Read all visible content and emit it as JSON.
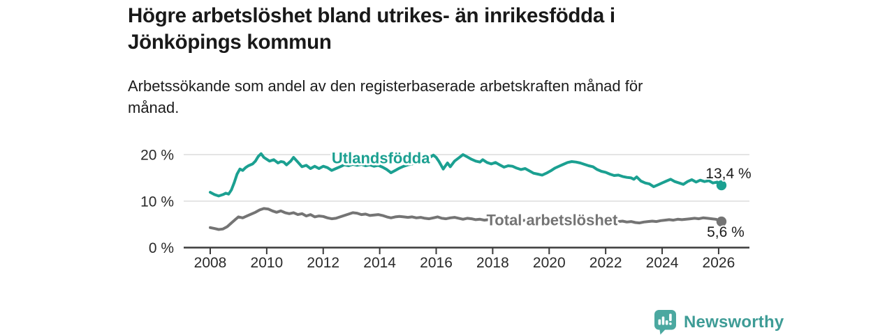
{
  "header": {
    "title": "Högre arbetslöshet bland utrikes- än inrikesfödda i\nJönköpings kommun",
    "subtitle": "Arbetssökande som andel av den registerbaserade arbetskraften månad för\nmånad."
  },
  "footer": {
    "brand": "Newsworthy",
    "logo_icon": "newsworthy-speech-bubble-bar-chart"
  },
  "colors": {
    "accent_teal": "#1BA091",
    "series_gray": "#747474",
    "brand_bubble_teal": "#4BA8A0",
    "brand_wordmark_teal": "#3E9C96",
    "grid": "#DCDCDC",
    "axis": "#3B3B3B",
    "text_dark": "#1A1A1A"
  },
  "chart_data": {
    "type": "line",
    "title": "Högre arbetslöshet bland utrikes- än inrikesfödda i Jönköpings kommun",
    "subtitle": "Arbetssökande som andel av den registerbaserade arbetskraften månad för månad.",
    "xlabel": "",
    "ylabel": "",
    "xlim": [
      2007.05,
      2027.1
    ],
    "ylim": [
      0,
      21.7
    ],
    "grid": "horizontal-only",
    "legend": "inline-series-labels",
    "x_ticks": [
      2008,
      2010,
      2012,
      2014,
      2016,
      2018,
      2020,
      2022,
      2024,
      2026
    ],
    "y_ticks": [
      {
        "value": 0,
        "label": "0 %"
      },
      {
        "value": 10,
        "label": "10 %"
      },
      {
        "value": 20,
        "label": "20 %"
      }
    ],
    "series": [
      {
        "name": "Total arbetslöshet",
        "color": "#747474",
        "end_value": 5.6,
        "end_value_label": "5,6 %",
        "label_anchor": {
          "x": 2017.78,
          "y": 6.0
        },
        "points": [
          [
            2008.0,
            4.3
          ],
          [
            2008.15,
            4.1
          ],
          [
            2008.3,
            3.9
          ],
          [
            2008.45,
            4.0
          ],
          [
            2008.6,
            4.5
          ],
          [
            2008.75,
            5.3
          ],
          [
            2008.9,
            6.1
          ],
          [
            2009.0,
            6.6
          ],
          [
            2009.15,
            6.4
          ],
          [
            2009.3,
            6.8
          ],
          [
            2009.45,
            7.2
          ],
          [
            2009.6,
            7.6
          ],
          [
            2009.75,
            8.1
          ],
          [
            2009.9,
            8.4
          ],
          [
            2010.05,
            8.3
          ],
          [
            2010.2,
            7.9
          ],
          [
            2010.35,
            7.6
          ],
          [
            2010.5,
            7.9
          ],
          [
            2010.65,
            7.5
          ],
          [
            2010.8,
            7.3
          ],
          [
            2010.95,
            7.5
          ],
          [
            2011.1,
            7.1
          ],
          [
            2011.25,
            7.3
          ],
          [
            2011.4,
            6.8
          ],
          [
            2011.55,
            7.1
          ],
          [
            2011.7,
            6.6
          ],
          [
            2011.85,
            6.8
          ],
          [
            2012.0,
            6.7
          ],
          [
            2012.15,
            6.4
          ],
          [
            2012.3,
            6.2
          ],
          [
            2012.45,
            6.3
          ],
          [
            2012.6,
            6.6
          ],
          [
            2012.75,
            6.9
          ],
          [
            2012.9,
            7.2
          ],
          [
            2013.05,
            7.5
          ],
          [
            2013.2,
            7.4
          ],
          [
            2013.35,
            7.1
          ],
          [
            2013.5,
            7.2
          ],
          [
            2013.65,
            6.9
          ],
          [
            2013.8,
            7.0
          ],
          [
            2013.95,
            7.1
          ],
          [
            2014.1,
            6.9
          ],
          [
            2014.25,
            6.6
          ],
          [
            2014.4,
            6.4
          ],
          [
            2014.55,
            6.6
          ],
          [
            2014.7,
            6.7
          ],
          [
            2014.85,
            6.6
          ],
          [
            2015.0,
            6.5
          ],
          [
            2015.15,
            6.6
          ],
          [
            2015.3,
            6.4
          ],
          [
            2015.45,
            6.5
          ],
          [
            2015.6,
            6.3
          ],
          [
            2015.75,
            6.2
          ],
          [
            2015.9,
            6.4
          ],
          [
            2016.05,
            6.6
          ],
          [
            2016.2,
            6.3
          ],
          [
            2016.35,
            6.2
          ],
          [
            2016.5,
            6.4
          ],
          [
            2016.65,
            6.5
          ],
          [
            2016.8,
            6.3
          ],
          [
            2016.95,
            6.1
          ],
          [
            2017.1,
            6.3
          ],
          [
            2017.25,
            6.2
          ],
          [
            2017.4,
            6.0
          ],
          [
            2017.55,
            6.1
          ],
          [
            2017.7,
            5.9
          ],
          [
            2017.85,
            6.0
          ],
          [
            2018.0,
            6.1
          ],
          [
            2018.2,
            6.0
          ],
          [
            2018.4,
            5.9
          ],
          [
            2018.6,
            6.0
          ],
          [
            2018.8,
            5.9
          ],
          [
            2019.0,
            5.8
          ],
          [
            2019.2,
            5.9
          ],
          [
            2019.4,
            5.8
          ],
          [
            2019.6,
            5.9
          ],
          [
            2019.8,
            6.0
          ],
          [
            2020.0,
            6.1
          ],
          [
            2020.2,
            6.3
          ],
          [
            2020.4,
            6.4
          ],
          [
            2020.6,
            6.3
          ],
          [
            2020.8,
            6.2
          ],
          [
            2021.0,
            6.1
          ],
          [
            2021.2,
            6.0
          ],
          [
            2021.4,
            5.9
          ],
          [
            2021.6,
            5.8
          ],
          [
            2021.8,
            5.9
          ],
          [
            2022.0,
            5.8
          ],
          [
            2022.15,
            5.7
          ],
          [
            2022.3,
            5.8
          ],
          [
            2022.45,
            5.6
          ],
          [
            2022.6,
            5.7
          ],
          [
            2022.75,
            5.5
          ],
          [
            2022.9,
            5.6
          ],
          [
            2023.05,
            5.4
          ],
          [
            2023.2,
            5.3
          ],
          [
            2023.35,
            5.5
          ],
          [
            2023.5,
            5.6
          ],
          [
            2023.65,
            5.7
          ],
          [
            2023.8,
            5.6
          ],
          [
            2023.95,
            5.8
          ],
          [
            2024.1,
            5.9
          ],
          [
            2024.25,
            6.0
          ],
          [
            2024.4,
            5.9
          ],
          [
            2024.55,
            6.1
          ],
          [
            2024.7,
            6.0
          ],
          [
            2024.85,
            6.1
          ],
          [
            2025.0,
            6.2
          ],
          [
            2025.15,
            6.3
          ],
          [
            2025.3,
            6.2
          ],
          [
            2025.45,
            6.4
          ],
          [
            2025.6,
            6.3
          ],
          [
            2025.75,
            6.2
          ],
          [
            2025.9,
            6.1
          ],
          [
            2026.0,
            5.9
          ],
          [
            2026.1,
            5.6
          ]
        ]
      },
      {
        "name": "Utlandsfödda",
        "color": "#1BA091",
        "end_value": 13.4,
        "end_value_label": "13,4 %",
        "label_anchor": {
          "x": 2012.3,
          "y": 19.3
        },
        "points": [
          [
            2008.0,
            11.9
          ],
          [
            2008.15,
            11.4
          ],
          [
            2008.3,
            11.1
          ],
          [
            2008.45,
            11.4
          ],
          [
            2008.55,
            11.7
          ],
          [
            2008.65,
            11.5
          ],
          [
            2008.75,
            12.4
          ],
          [
            2008.85,
            14.0
          ],
          [
            2008.95,
            15.8
          ],
          [
            2009.05,
            16.9
          ],
          [
            2009.15,
            16.6
          ],
          [
            2009.25,
            17.2
          ],
          [
            2009.35,
            17.6
          ],
          [
            2009.5,
            18.0
          ],
          [
            2009.6,
            18.6
          ],
          [
            2009.7,
            19.6
          ],
          [
            2009.8,
            20.2
          ],
          [
            2009.9,
            19.4
          ],
          [
            2010.0,
            19.0
          ],
          [
            2010.1,
            18.6
          ],
          [
            2010.25,
            18.9
          ],
          [
            2010.4,
            18.2
          ],
          [
            2010.5,
            18.5
          ],
          [
            2010.6,
            18.4
          ],
          [
            2010.7,
            17.8
          ],
          [
            2010.85,
            18.6
          ],
          [
            2010.95,
            19.4
          ],
          [
            2011.1,
            18.4
          ],
          [
            2011.25,
            17.4
          ],
          [
            2011.4,
            17.7
          ],
          [
            2011.55,
            17.0
          ],
          [
            2011.7,
            17.5
          ],
          [
            2011.85,
            17.0
          ],
          [
            2012.0,
            17.5
          ],
          [
            2012.15,
            17.2
          ],
          [
            2012.3,
            16.6
          ],
          [
            2012.45,
            17.0
          ],
          [
            2012.6,
            17.4
          ],
          [
            2012.75,
            17.8
          ],
          [
            2012.9,
            17.6
          ],
          [
            2013.05,
            17.9
          ],
          [
            2013.2,
            17.7
          ],
          [
            2013.35,
            17.9
          ],
          [
            2013.5,
            17.6
          ],
          [
            2013.65,
            17.8
          ],
          [
            2013.8,
            17.5
          ],
          [
            2013.95,
            17.7
          ],
          [
            2014.1,
            17.3
          ],
          [
            2014.25,
            16.8
          ],
          [
            2014.4,
            16.1
          ],
          [
            2014.55,
            16.6
          ],
          [
            2014.7,
            17.1
          ],
          [
            2014.85,
            17.5
          ],
          [
            2015.0,
            17.8
          ],
          [
            2015.15,
            18.0
          ],
          [
            2015.3,
            18.3
          ],
          [
            2015.45,
            18.5
          ],
          [
            2015.6,
            18.8
          ],
          [
            2015.75,
            19.3
          ],
          [
            2015.9,
            19.9
          ],
          [
            2016.0,
            19.4
          ],
          [
            2016.1,
            18.5
          ],
          [
            2016.25,
            16.9
          ],
          [
            2016.4,
            18.2
          ],
          [
            2016.5,
            17.4
          ],
          [
            2016.65,
            18.6
          ],
          [
            2016.8,
            19.3
          ],
          [
            2016.95,
            20.0
          ],
          [
            2017.1,
            19.5
          ],
          [
            2017.25,
            19.0
          ],
          [
            2017.4,
            18.6
          ],
          [
            2017.55,
            18.4
          ],
          [
            2017.65,
            18.9
          ],
          [
            2017.8,
            18.3
          ],
          [
            2017.95,
            18.0
          ],
          [
            2018.1,
            18.3
          ],
          [
            2018.25,
            17.8
          ],
          [
            2018.4,
            17.3
          ],
          [
            2018.55,
            17.6
          ],
          [
            2018.7,
            17.5
          ],
          [
            2018.85,
            17.1
          ],
          [
            2019.0,
            16.8
          ],
          [
            2019.15,
            17.0
          ],
          [
            2019.3,
            16.5
          ],
          [
            2019.45,
            16.0
          ],
          [
            2019.6,
            15.8
          ],
          [
            2019.75,
            15.6
          ],
          [
            2019.9,
            16.0
          ],
          [
            2020.05,
            16.5
          ],
          [
            2020.2,
            17.1
          ],
          [
            2020.35,
            17.5
          ],
          [
            2020.5,
            17.9
          ],
          [
            2020.65,
            18.3
          ],
          [
            2020.8,
            18.5
          ],
          [
            2020.95,
            18.4
          ],
          [
            2021.1,
            18.2
          ],
          [
            2021.25,
            17.9
          ],
          [
            2021.4,
            17.6
          ],
          [
            2021.55,
            17.4
          ],
          [
            2021.7,
            16.8
          ],
          [
            2021.85,
            16.4
          ],
          [
            2022.0,
            16.2
          ],
          [
            2022.15,
            15.8
          ],
          [
            2022.3,
            15.5
          ],
          [
            2022.45,
            15.6
          ],
          [
            2022.6,
            15.3
          ],
          [
            2022.75,
            15.1
          ],
          [
            2022.9,
            15.0
          ],
          [
            2023.0,
            14.7
          ],
          [
            2023.1,
            15.2
          ],
          [
            2023.25,
            14.3
          ],
          [
            2023.4,
            13.9
          ],
          [
            2023.55,
            13.7
          ],
          [
            2023.7,
            13.1
          ],
          [
            2023.85,
            13.5
          ],
          [
            2024.0,
            13.9
          ],
          [
            2024.15,
            14.3
          ],
          [
            2024.3,
            14.7
          ],
          [
            2024.45,
            14.2
          ],
          [
            2024.6,
            13.9
          ],
          [
            2024.75,
            13.6
          ],
          [
            2024.9,
            14.2
          ],
          [
            2025.05,
            14.6
          ],
          [
            2025.2,
            14.1
          ],
          [
            2025.35,
            14.5
          ],
          [
            2025.5,
            14.2
          ],
          [
            2025.65,
            14.4
          ],
          [
            2025.8,
            13.9
          ],
          [
            2025.95,
            14.1
          ],
          [
            2026.1,
            13.4
          ]
        ]
      }
    ]
  }
}
